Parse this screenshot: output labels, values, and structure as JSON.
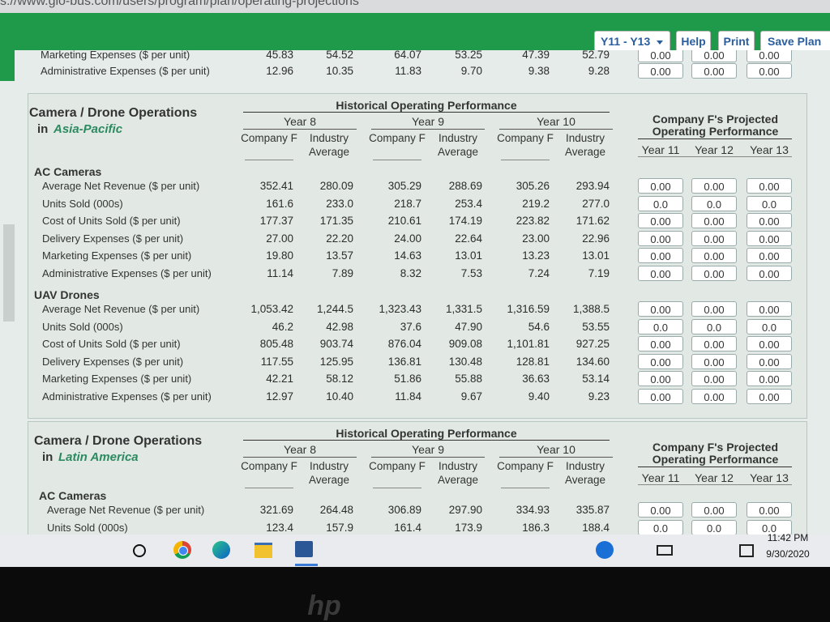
{
  "browser": {
    "url": "s://www.glo-bus.com/users/program/plan/operating-projections"
  },
  "toolbar": {
    "year_range": "Y11 - Y13",
    "help": "Help",
    "print": "Print",
    "save": "Save Plan"
  },
  "top_rows": [
    {
      "label": "Marketing Expenses ($ per unit)",
      "values": [
        "45.83",
        "54.52",
        "64.07",
        "53.25",
        "47.39",
        "52.79"
      ],
      "projected": [
        "0.00",
        "0.00",
        "0.00"
      ]
    },
    {
      "label": "Administrative Expenses ($ per unit)",
      "values": [
        "12.96",
        "10.35",
        "11.83",
        "9.70",
        "9.38",
        "9.28"
      ],
      "projected": [
        "0.00",
        "0.00",
        "0.00"
      ]
    }
  ],
  "sections": [
    {
      "title": "Camera / Drone Operations",
      "region_prefix": "in",
      "region": "Asia-Pacific",
      "historical_header": "Historical Operating Performance",
      "years": [
        "Year 8",
        "Year 9",
        "Year 10"
      ],
      "column_headers": [
        "Company F",
        "Industry Average",
        "Company F",
        "Industry Average",
        "Company F",
        "Industry Average"
      ],
      "projected_header": "Company F's Projected Operating Performance",
      "projected_years": [
        "Year 11",
        "Year 12",
        "Year 13"
      ],
      "groups": [
        {
          "name": "AC Cameras",
          "rows": [
            {
              "label": "Average Net Revenue ($ per unit)",
              "values": [
                "352.41",
                "280.09",
                "305.29",
                "288.69",
                "305.26",
                "293.94"
              ],
              "projected": [
                "0.00",
                "0.00",
                "0.00"
              ]
            },
            {
              "label": "Units Sold (000s)",
              "values": [
                "161.6",
                "233.0",
                "218.7",
                "253.4",
                "219.2",
                "277.0"
              ],
              "projected": [
                "0.0",
                "0.0",
                "0.0"
              ]
            },
            {
              "label": "Cost of Units Sold ($ per unit)",
              "values": [
                "177.37",
                "171.35",
                "210.61",
                "174.19",
                "223.82",
                "171.62"
              ],
              "projected": [
                "0.00",
                "0.00",
                "0.00"
              ]
            },
            {
              "label": "Delivery Expenses ($ per unit)",
              "values": [
                "27.00",
                "22.20",
                "24.00",
                "22.64",
                "23.00",
                "22.96"
              ],
              "projected": [
                "0.00",
                "0.00",
                "0.00"
              ]
            },
            {
              "label": "Marketing Expenses ($ per unit)",
              "values": [
                "19.80",
                "13.57",
                "14.63",
                "13.01",
                "13.23",
                "13.01"
              ],
              "projected": [
                "0.00",
                "0.00",
                "0.00"
              ]
            },
            {
              "label": "Administrative Expenses ($ per unit)",
              "values": [
                "11.14",
                "7.89",
                "8.32",
                "7.53",
                "7.24",
                "7.19"
              ],
              "projected": [
                "0.00",
                "0.00",
                "0.00"
              ]
            }
          ]
        },
        {
          "name": "UAV Drones",
          "rows": [
            {
              "label": "Average Net Revenue ($ per unit)",
              "values": [
                "1,053.42",
                "1,244.5",
                "1,323.43",
                "1,331.5",
                "1,316.59",
                "1,388.5"
              ],
              "projected": [
                "0.00",
                "0.00",
                "0.00"
              ]
            },
            {
              "label": "Units Sold (000s)",
              "values": [
                "46.2",
                "42.98",
                "37.6",
                "47.90",
                "54.6",
                "53.55"
              ],
              "projected": [
                "0.0",
                "0.0",
                "0.0"
              ]
            },
            {
              "label": "Cost of Units Sold ($ per unit)",
              "values": [
                "805.48",
                "903.74",
                "876.04",
                "909.08",
                "1,101.81",
                "927.25"
              ],
              "projected": [
                "0.00",
                "0.00",
                "0.00"
              ]
            },
            {
              "label": "Delivery Expenses ($ per unit)",
              "values": [
                "117.55",
                "125.95",
                "136.81",
                "130.48",
                "128.81",
                "134.60"
              ],
              "projected": [
                "0.00",
                "0.00",
                "0.00"
              ]
            },
            {
              "label": "Marketing Expenses ($ per unit)",
              "values": [
                "42.21",
                "58.12",
                "51.86",
                "55.88",
                "36.63",
                "53.14"
              ],
              "projected": [
                "0.00",
                "0.00",
                "0.00"
              ]
            },
            {
              "label": "Administrative Expenses ($ per unit)",
              "values": [
                "12.97",
                "10.40",
                "11.84",
                "9.67",
                "9.40",
                "9.23"
              ],
              "projected": [
                "0.00",
                "0.00",
                "0.00"
              ]
            }
          ]
        }
      ]
    },
    {
      "title": "Camera / Drone Operations",
      "region_prefix": "in",
      "region": "Latin America",
      "historical_header": "Historical Operating Performance",
      "years": [
        "Year 8",
        "Year 9",
        "Year 10"
      ],
      "column_headers": [
        "Company F",
        "Industry Average",
        "Company F",
        "Industry Average",
        "Company F",
        "Industry Average"
      ],
      "projected_header": "Company F's Projected Operating Performance",
      "projected_years": [
        "Year 11",
        "Year 12",
        "Year 13"
      ],
      "groups": [
        {
          "name": "AC Cameras",
          "rows": [
            {
              "label": "Average Net Revenue ($ per unit)",
              "values": [
                "321.69",
                "264.48",
                "306.89",
                "297.90",
                "334.93",
                "335.87"
              ],
              "projected": [
                "0.00",
                "0.00",
                "0.00"
              ]
            },
            {
              "label": "Units Sold (000s)",
              "values": [
                "123.4",
                "157.9",
                "161.4",
                "173.9",
                "186.3",
                "188.4"
              ],
              "projected": [
                "0.0",
                "0.0",
                "0.0"
              ]
            }
          ]
        }
      ]
    }
  ],
  "taskbar": {
    "time": "11:42 PM",
    "date": "9/30/2020"
  },
  "bezel_logo": "hp"
}
